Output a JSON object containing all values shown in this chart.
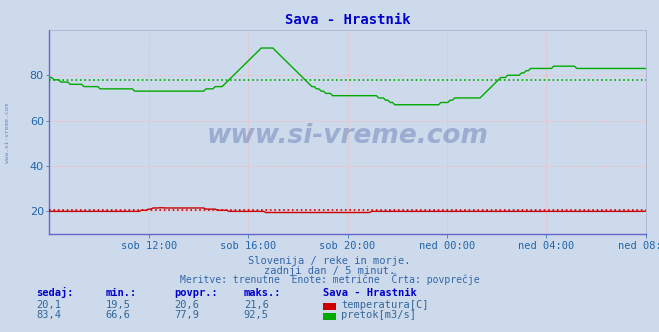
{
  "title": "Sava - Hrastnik",
  "title_color": "#0000cc",
  "bg_color": "#cddaeb",
  "plot_bg_color": "#cddaeb",
  "grid_color": "#ffb0b0",
  "ylim": [
    10,
    100
  ],
  "yticks": [
    20,
    40,
    60,
    80
  ],
  "xtick_labels": [
    "sob 12:00",
    "sob 16:00",
    "sob 20:00",
    "ned 00:00",
    "ned 04:00",
    "ned 08:00"
  ],
  "xtick_positions": [
    48,
    96,
    144,
    192,
    240,
    288
  ],
  "temp_avg": 20.6,
  "flow_avg": 77.9,
  "temp_color": "#cc0000",
  "flow_color": "#00aa00",
  "watermark_text": "www.si-vreme.com",
  "watermark_color": "#1a3a8a",
  "watermark_alpha": 0.28,
  "sidebar_text": "www.si-vreme.com",
  "subtitle1": "Slovenija / reke in morje.",
  "subtitle2": "zadnji dan / 5 minut.",
  "subtitle3": "Meritve: trenutne  Enote: metrične  Črta: povprečje",
  "subtitle_color": "#3366aa",
  "table_header": [
    "sedaj:",
    "min.:",
    "povpr.:",
    "maks.:",
    "Sava - Hrastnik"
  ],
  "table_header_color": "#0000cc",
  "table_row1": [
    "20,1",
    "19,5",
    "20,6",
    "21,6",
    "temperatura[C]"
  ],
  "table_row2": [
    "83,4",
    "66,6",
    "77,9",
    "92,5",
    "pretok[m3/s]"
  ],
  "table_color": "#336699",
  "temp_data_y": [
    20.0,
    20.0,
    20.0,
    20.0,
    20.0,
    20.0,
    20.0,
    20.0,
    20.0,
    20.0,
    20.0,
    20.0,
    20.0,
    20.0,
    20.0,
    20.0,
    20.0,
    20.0,
    20.0,
    20.0,
    20.0,
    20.0,
    20.0,
    20.0,
    20.0,
    20.0,
    20.0,
    20.0,
    20.0,
    20.0,
    20.0,
    20.0,
    20.0,
    20.0,
    20.0,
    20.0,
    20.0,
    20.0,
    20.0,
    20.0,
    20.5,
    20.5,
    20.5,
    21.0,
    21.0,
    21.5,
    21.5,
    21.5,
    21.6,
    21.6,
    21.5,
    21.5,
    21.5,
    21.5,
    21.5,
    21.5,
    21.5,
    21.5,
    21.5,
    21.5,
    21.5,
    21.5,
    21.5,
    21.5,
    21.5,
    21.5,
    21.5,
    21.5,
    21.0,
    21.0,
    21.0,
    21.0,
    21.0,
    20.5,
    20.5,
    20.5,
    20.5,
    20.5,
    20.0,
    20.0,
    20.0,
    20.0,
    20.0,
    20.0,
    20.0,
    20.0,
    20.0,
    20.0,
    20.0,
    20.0,
    20.0,
    20.0,
    20.0,
    20.0,
    19.5,
    19.5,
    19.5,
    19.5,
    19.5,
    19.5,
    19.5,
    19.5,
    19.5,
    19.5,
    19.5,
    19.5,
    19.5,
    19.5,
    19.5,
    19.5,
    19.5,
    19.5,
    19.5,
    19.5,
    19.5,
    19.5,
    19.5,
    19.5,
    19.5,
    19.5,
    19.5,
    19.5,
    19.5,
    19.5,
    19.5,
    19.5,
    19.5,
    19.5,
    19.5,
    19.5,
    19.5,
    19.5,
    19.5,
    19.5,
    19.5,
    19.5,
    19.5,
    19.5,
    19.5,
    19.5,
    20.0,
    20.0,
    20.0,
    20.0,
    20.0,
    20.0,
    20.0,
    20.0,
    20.0,
    20.0,
    20.0,
    20.0,
    20.0,
    20.0,
    20.0,
    20.0,
    20.0,
    20.0,
    20.0,
    20.0,
    20.0,
    20.0,
    20.0,
    20.0,
    20.0,
    20.0,
    20.0,
    20.0,
    20.0,
    20.0,
    20.0,
    20.0,
    20.0,
    20.0,
    20.0,
    20.0,
    20.0,
    20.0,
    20.0,
    20.0,
    20.0,
    20.0,
    20.0,
    20.0,
    20.0,
    20.0,
    20.0,
    20.0,
    20.0,
    20.0,
    20.0,
    20.0,
    20.0,
    20.0,
    20.0,
    20.0,
    20.0,
    20.0,
    20.0,
    20.0,
    20.0,
    20.0,
    20.0,
    20.0,
    20.0,
    20.0,
    20.0,
    20.0,
    20.0,
    20.0,
    20.0,
    20.0,
    20.0,
    20.0,
    20.0,
    20.0,
    20.0,
    20.0,
    20.0,
    20.0,
    20.0,
    20.0,
    20.0,
    20.0,
    20.0,
    20.0,
    20.0,
    20.0,
    20.0,
    20.0,
    20.0,
    20.0,
    20.0,
    20.0,
    20.0,
    20.0,
    20.0,
    20.0,
    20.0,
    20.0,
    20.0,
    20.0,
    20.0,
    20.0,
    20.0,
    20.0,
    20.0,
    20.0,
    20.0,
    20.0,
    20.0,
    20.0,
    20.0,
    20.0,
    20.0,
    20.0,
    20.0,
    20.0,
    20.0,
    20.1
  ],
  "flow_data_y": [
    79,
    79,
    78,
    78,
    78,
    77,
    77,
    77,
    77,
    76,
    76,
    76,
    76,
    76,
    76,
    75,
    75,
    75,
    75,
    75,
    75,
    75,
    74,
    74,
    74,
    74,
    74,
    74,
    74,
    74,
    74,
    74,
    74,
    74,
    74,
    74,
    74,
    73,
    73,
    73,
    73,
    73,
    73,
    73,
    73,
    73,
    73,
    73,
    73,
    73,
    73,
    73,
    73,
    73,
    73,
    73,
    73,
    73,
    73,
    73,
    73,
    73,
    73,
    73,
    73,
    73,
    73,
    73,
    74,
    74,
    74,
    74,
    75,
    75,
    75,
    75,
    76,
    77,
    78,
    79,
    80,
    81,
    82,
    83,
    84,
    85,
    86,
    87,
    88,
    89,
    90,
    91,
    92,
    92,
    92,
    92,
    92,
    92,
    91,
    90,
    89,
    88,
    87,
    86,
    85,
    84,
    83,
    82,
    81,
    80,
    79,
    78,
    77,
    76,
    75,
    75,
    74,
    74,
    73,
    73,
    72,
    72,
    72,
    71,
    71,
    71,
    71,
    71,
    71,
    71,
    71,
    71,
    71,
    71,
    71,
    71,
    71,
    71,
    71,
    71,
    71,
    71,
    71,
    70,
    70,
    70,
    69,
    69,
    68,
    68,
    67,
    67,
    67,
    67,
    67,
    67,
    67,
    67,
    67,
    67,
    67,
    67,
    67,
    67,
    67,
    67,
    67,
    67,
    67,
    67,
    68,
    68,
    68,
    68,
    69,
    69,
    70,
    70,
    70,
    70,
    70,
    70,
    70,
    70,
    70,
    70,
    70,
    70,
    71,
    72,
    73,
    74,
    75,
    76,
    77,
    78,
    79,
    79,
    79,
    80,
    80,
    80,
    80,
    80,
    80,
    81,
    81,
    82,
    82,
    83,
    83,
    83,
    83,
    83,
    83,
    83,
    83,
    83,
    83,
    84,
    84,
    84,
    84,
    84,
    84,
    84,
    84,
    84,
    84,
    83,
    83,
    83,
    83,
    83,
    83,
    83,
    83,
    83,
    83,
    83,
    83,
    83,
    83,
    83,
    83,
    83,
    83,
    83,
    83,
    83,
    83,
    83,
    83,
    83,
    83,
    83,
    83,
    83,
    83,
    83
  ]
}
